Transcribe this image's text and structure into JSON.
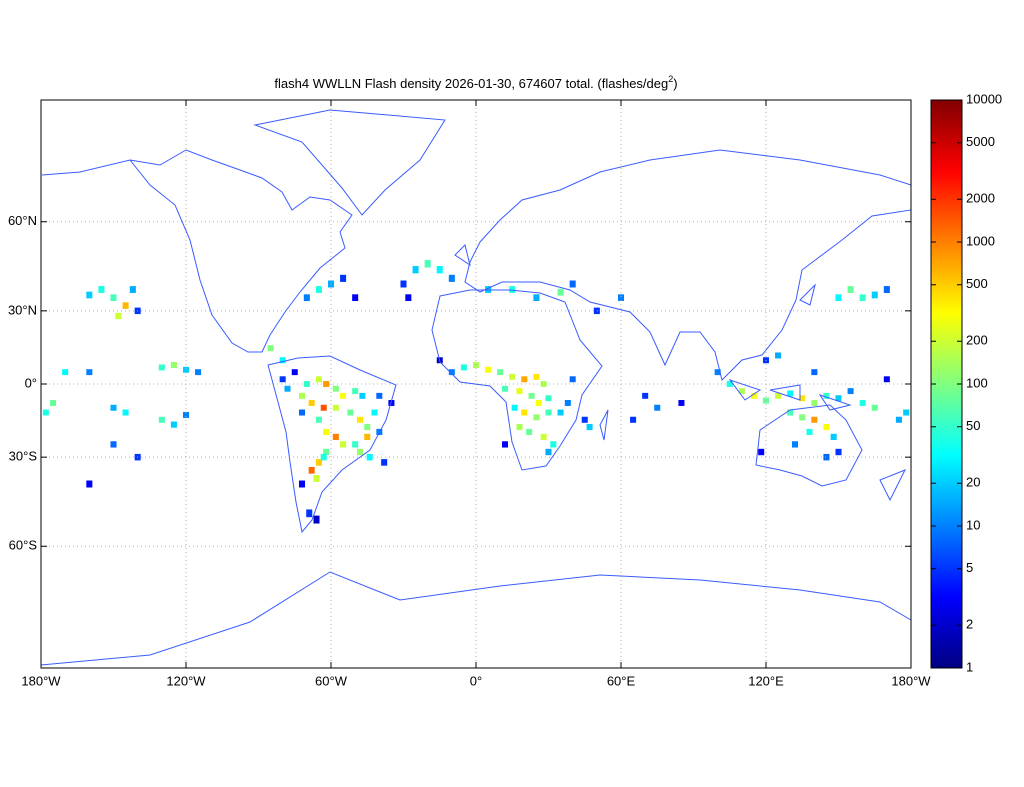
{
  "chart_data": {
    "type": "density_map",
    "title": "flash4 WWLLN Flash density 2026-01-30, 674607 total. (flashes/deg",
    "title_superscript": "2",
    "title_suffix": ")",
    "projection": "miller",
    "xlim": [
      -180,
      180
    ],
    "ylim": [
      -86,
      86
    ],
    "xticks": [
      {
        "value": -180,
        "label": "180°W"
      },
      {
        "value": -120,
        "label": "120°W"
      },
      {
        "value": -60,
        "label": "60°W"
      },
      {
        "value": 0,
        "label": "0°"
      },
      {
        "value": 60,
        "label": "60°E"
      },
      {
        "value": 120,
        "label": "120°E"
      },
      {
        "value": 180,
        "label": "180°W"
      }
    ],
    "yticks": [
      {
        "value": 60,
        "label": "60°N"
      },
      {
        "value": 30,
        "label": "30°N"
      },
      {
        "value": 0,
        "label": "0°"
      },
      {
        "value": -30,
        "label": "30°S"
      },
      {
        "value": -60,
        "label": "60°S"
      }
    ],
    "grid": true,
    "colormap": "jet",
    "colorbar_lim": [
      1,
      10000
    ],
    "colorbar_scale": "log",
    "colorbar_ticks": [
      1,
      2,
      5,
      10,
      20,
      50,
      100,
      200,
      500,
      1000,
      2000,
      5000,
      10000
    ],
    "cell_size": 2.5,
    "lon": [
      -70,
      -65,
      -62,
      -58,
      -55,
      -50,
      -47,
      -72,
      -68,
      -63,
      -58,
      -52,
      -48,
      -45,
      -42,
      -65,
      -62,
      -58,
      -55,
      -50,
      -45,
      -40,
      -62,
      -65,
      -68,
      -66,
      -63,
      -72,
      -78,
      -80,
      -75,
      -72,
      -69,
      -66,
      -44,
      -38,
      -48,
      -40,
      -35,
      -10,
      -5,
      0,
      5,
      10,
      15,
      20,
      25,
      28,
      12,
      18,
      23,
      26,
      30,
      16,
      20,
      25,
      30,
      35,
      18,
      22,
      28,
      32,
      30,
      45,
      47,
      38,
      40,
      12,
      -15,
      100,
      105,
      110,
      115,
      120,
      125,
      130,
      135,
      140,
      145,
      150,
      155,
      160,
      165,
      175,
      120,
      125,
      140,
      170,
      178,
      130,
      135,
      140,
      145,
      138,
      148,
      132,
      150,
      145,
      118,
      -25,
      -20,
      -15,
      -10,
      -30,
      -28,
      5,
      15,
      25,
      35,
      40,
      50,
      60,
      -150,
      -145,
      -148,
      -155,
      -160,
      -142,
      -140,
      -170,
      -160,
      -130,
      -125,
      -120,
      -115,
      -175,
      -178,
      -150,
      -145,
      -130,
      -125,
      -120,
      -150,
      -140,
      -160,
      150,
      155,
      160,
      165,
      170,
      -85,
      -80,
      -70,
      -65,
      -60,
      -55,
      -50,
      70,
      75,
      85,
      65
    ],
    "lat": [
      0,
      2,
      0,
      -2,
      -5,
      -3,
      -5,
      -5,
      -8,
      -10,
      -10,
      -12,
      -15,
      -18,
      -12,
      -15,
      -20,
      -22,
      -25,
      -25,
      -22,
      -20,
      -28,
      -32,
      -35,
      -38,
      -30,
      -12,
      -2,
      2,
      5,
      -40,
      -50,
      -52,
      -30,
      -32,
      -28,
      -5,
      -8,
      5,
      7,
      8,
      6,
      5,
      3,
      2,
      3,
      0,
      -2,
      -3,
      -5,
      -8,
      -6,
      -10,
      -12,
      -14,
      -12,
      -12,
      -18,
      -20,
      -22,
      -25,
      -28,
      -15,
      -18,
      -8,
      2,
      -25,
      10,
      5,
      0,
      -3,
      -5,
      -7,
      -5,
      -4,
      -6,
      -8,
      -5,
      -6,
      -3,
      -8,
      -10,
      -15,
      10,
      12,
      5,
      2,
      -12,
      -12,
      -14,
      -15,
      -18,
      -20,
      -22,
      -25,
      -28,
      -30,
      -28,
      45,
      47,
      45,
      42,
      40,
      35,
      38,
      38,
      35,
      37,
      40,
      30,
      35,
      35,
      32,
      28,
      38,
      36,
      38,
      30,
      5,
      5,
      7,
      8,
      6,
      5,
      -8,
      -12,
      -10,
      -12,
      -15,
      -17,
      -13,
      -25,
      -30,
      -40,
      35,
      38,
      35,
      36,
      38,
      15,
      10,
      35,
      38,
      40,
      42,
      35,
      -5,
      -10,
      -8,
      -15
    ],
    "values": [
      50,
      200,
      800,
      100,
      300,
      60,
      20,
      150,
      500,
      1500,
      200,
      80,
      400,
      100,
      30,
      60,
      300,
      1000,
      200,
      50,
      600,
      10,
      80,
      500,
      1200,
      200,
      40,
      8,
      15,
      5,
      3,
      3,
      5,
      2,
      30,
      5,
      120,
      8,
      3,
      10,
      40,
      150,
      300,
      80,
      200,
      700,
      400,
      150,
      60,
      250,
      90,
      300,
      50,
      30,
      400,
      120,
      60,
      20,
      150,
      80,
      200,
      40,
      15,
      5,
      20,
      10,
      8,
      3,
      2,
      10,
      40,
      150,
      300,
      80,
      200,
      30,
      400,
      120,
      50,
      20,
      10,
      40,
      80,
      15,
      5,
      15,
      8,
      3,
      20,
      60,
      100,
      800,
      300,
      40,
      20,
      10,
      5,
      8,
      3,
      20,
      60,
      30,
      10,
      5,
      3,
      20,
      40,
      15,
      80,
      8,
      5,
      10,
      60,
      600,
      200,
      40,
      20,
      15,
      5,
      30,
      10,
      50,
      120,
      20,
      10,
      80,
      40,
      15,
      30,
      60,
      20,
      10,
      8,
      5,
      3,
      30,
      80,
      50,
      20,
      8,
      100,
      30,
      10,
      40,
      15,
      5,
      3,
      5,
      10,
      3,
      5
    ]
  }
}
